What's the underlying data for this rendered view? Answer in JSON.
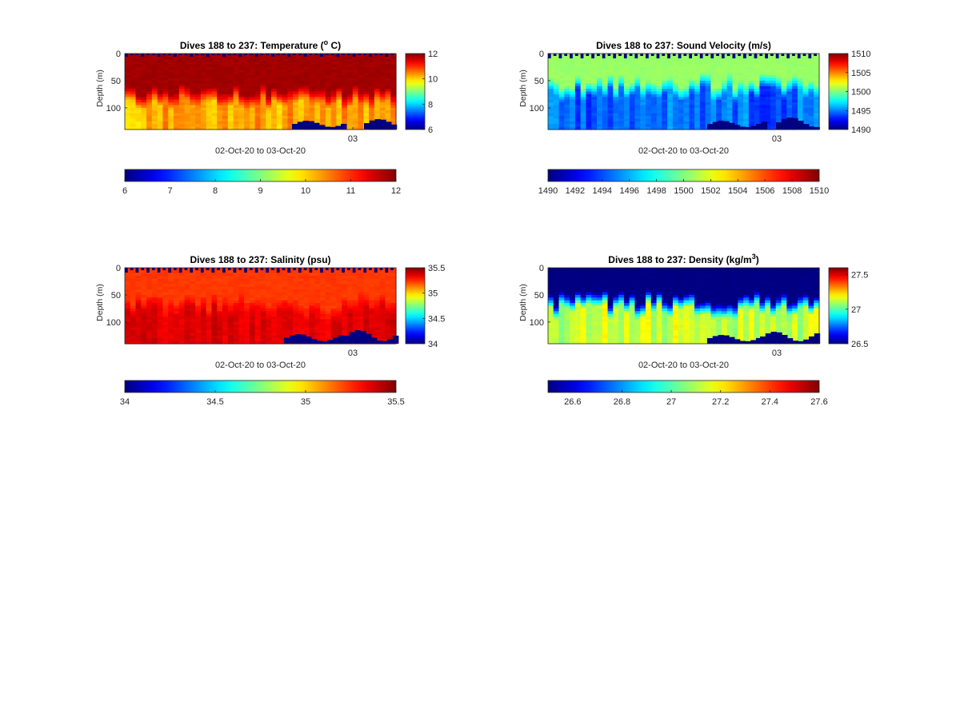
{
  "figure": {
    "background": "#ffffff"
  },
  "chart_data": [
    {
      "type": "heatmap",
      "variable": "temperature",
      "title": "Dives 188 to 237: Temperature (",
      "title_sup": "o",
      "title_suffix": " C)",
      "xlabel": "02-Oct-20 to 03-Oct-20",
      "ylabel": "Depth (m)",
      "y_ticks": [
        "0",
        "50",
        "100"
      ],
      "y_tick_values": [
        0,
        50,
        100
      ],
      "ylim": [
        0,
        140
      ],
      "x_tick_labels": [
        "03"
      ],
      "dives": [
        188,
        237
      ],
      "clim": [
        6,
        12
      ],
      "colorbar_right_ticks": [
        "6",
        "8",
        "10",
        "12"
      ],
      "colorbar_right_values": [
        6,
        8,
        10,
        12
      ],
      "colorbar_bottom_ticks": [
        "6",
        "7",
        "8",
        "9",
        "10",
        "11",
        "12"
      ],
      "colorbar_bottom_values": [
        6,
        7,
        8,
        9,
        10,
        11,
        12
      ],
      "profile": {
        "surface_value": 11.9,
        "upper_value": 11.8,
        "mixed_layer_depth_m": [
          55,
          80
        ],
        "lower_value": 10.3,
        "lower_value_range": [
          9.9,
          10.6
        ],
        "missing_value_color_index": 6
      }
    },
    {
      "type": "heatmap",
      "variable": "sound_velocity",
      "title": "Dives 188 to 237: Sound Velocity (m/s)",
      "xlabel": "02-Oct-20 to 03-Oct-20",
      "ylabel": "Depth (m)",
      "y_ticks": [
        "0",
        "50",
        "100"
      ],
      "y_tick_values": [
        0,
        50,
        100
      ],
      "ylim": [
        0,
        140
      ],
      "x_tick_labels": [
        "03"
      ],
      "dives": [
        188,
        237
      ],
      "clim": [
        1490,
        1510
      ],
      "colorbar_right_ticks": [
        "1490",
        "1495",
        "1500",
        "1505",
        "1510"
      ],
      "colorbar_right_values": [
        1490,
        1495,
        1500,
        1505,
        1510
      ],
      "colorbar_bottom_ticks": [
        "1490",
        "1492",
        "1494",
        "1496",
        "1498",
        "1500",
        "1502",
        "1504",
        "1506",
        "1508",
        "1510"
      ],
      "colorbar_bottom_values": [
        1490,
        1492,
        1494,
        1496,
        1498,
        1500,
        1502,
        1504,
        1506,
        1508,
        1510
      ],
      "profile": {
        "surface_value": 1500.5,
        "upper_value": 1500.5,
        "mixed_layer_depth_m": [
          35,
          65
        ],
        "lower_value": 1494.5,
        "lower_value_range": [
          1493,
          1496
        ],
        "missing_value_color_index": 1490
      }
    },
    {
      "type": "heatmap",
      "variable": "salinity",
      "title": "Dives 188 to 237: Salinity (psu)",
      "xlabel": "02-Oct-20 to 03-Oct-20",
      "ylabel": "Depth (m)",
      "y_ticks": [
        "0",
        "50",
        "100"
      ],
      "y_tick_values": [
        0,
        50,
        100
      ],
      "ylim": [
        0,
        140
      ],
      "x_tick_labels": [
        "03"
      ],
      "dives": [
        188,
        237
      ],
      "clim": [
        34,
        35.5
      ],
      "colorbar_right_ticks": [
        "34",
        "34.5",
        "35",
        "35.5"
      ],
      "colorbar_right_values": [
        34,
        34.5,
        35,
        35.5
      ],
      "colorbar_bottom_ticks": [
        "34",
        "34.5",
        "35",
        "35.5"
      ],
      "colorbar_bottom_values": [
        34,
        34.5,
        35,
        35.5
      ],
      "profile": {
        "surface_value": 35.23,
        "upper_value": 35.23,
        "mixed_layer_depth_m": [
          45,
          75
        ],
        "lower_value": 35.36,
        "lower_value_range": [
          35.32,
          35.4
        ],
        "missing_value_color_index": 34
      }
    },
    {
      "type": "heatmap",
      "variable": "density",
      "title": "Dives 188 to 237: Density (kg/m",
      "title_sup": "3",
      "title_suffix": ")",
      "xlabel": "02-Oct-20 to 03-Oct-20",
      "ylabel": "Depth (m)",
      "y_ticks": [
        "0",
        "50",
        "100"
      ],
      "y_tick_values": [
        0,
        50,
        100
      ],
      "ylim": [
        0,
        140
      ],
      "x_tick_labels": [
        "03"
      ],
      "dives": [
        188,
        237
      ],
      "clim": [
        26.5,
        27.6
      ],
      "colorbar_right_ticks": [
        "26.5",
        "27",
        "27.5"
      ],
      "colorbar_right_values": [
        26.5,
        27,
        27.5
      ],
      "colorbar_bottom_ticks": [
        "26.6",
        "26.8",
        "27",
        "27.2",
        "27.4",
        "27.6"
      ],
      "colorbar_bottom_values": [
        26.6,
        26.8,
        27,
        27.2,
        27.4,
        27.6
      ],
      "profile": {
        "surface_value": 26.5,
        "upper_value": 26.5,
        "mixed_layer_depth_m": [
          40,
          70
        ],
        "lower_value": 27.12,
        "lower_value_range": [
          27.05,
          27.2
        ],
        "missing_value_color_index": 26.5
      }
    }
  ]
}
